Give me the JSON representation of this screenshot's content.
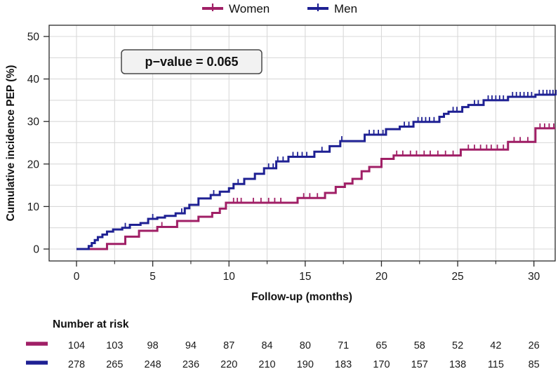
{
  "chart_data": {
    "type": "line",
    "subtype": "step-cumulative-incidence",
    "title": "",
    "xlabel": "Follow-up (months)",
    "ylabel": "Cumulative incidence PEP (%)",
    "xlim": [
      0,
      31.4
    ],
    "ylim": [
      0,
      50
    ],
    "xticks": [
      0,
      5,
      10,
      15,
      20,
      25,
      30
    ],
    "xticks_minor": [
      2.5,
      7.5,
      12.5,
      17.5,
      22.5,
      27.5
    ],
    "yticks": [
      0,
      10,
      20,
      30,
      40,
      50
    ],
    "grid": {
      "x_interval": 2.5,
      "y_interval": 5,
      "color": "#D9D9D9",
      "on": true
    },
    "legend_position": "top",
    "p_value": "p−value = 0.065",
    "series": [
      {
        "name": "Women",
        "color": "#A01F66",
        "steps": [
          [
            0,
            0
          ],
          [
            2.0,
            1.2
          ],
          [
            3.2,
            2.9
          ],
          [
            4.1,
            4.3
          ],
          [
            5.3,
            5.2
          ],
          [
            6.6,
            6.6
          ],
          [
            8.0,
            7.6
          ],
          [
            8.9,
            8.5
          ],
          [
            9.4,
            9.5
          ],
          [
            9.8,
            10.9
          ],
          [
            14.5,
            12.0
          ],
          [
            16.3,
            13.2
          ],
          [
            17.0,
            14.6
          ],
          [
            17.6,
            15.4
          ],
          [
            18.1,
            16.5
          ],
          [
            18.7,
            18.3
          ],
          [
            19.2,
            19.3
          ],
          [
            20.0,
            21.2
          ],
          [
            20.8,
            22.0
          ],
          [
            25.2,
            23.4
          ],
          [
            28.3,
            25.2
          ],
          [
            30.1,
            28.4
          ]
        ],
        "censor_ticks": [
          5.6,
          10.3,
          10.55,
          10.8,
          11.6,
          12.1,
          12.6,
          13.0,
          13.4,
          14.9,
          15.3,
          15.8,
          21.0,
          21.4,
          21.9,
          22.3,
          22.8,
          23.2,
          23.7,
          24.2,
          24.7,
          25.7,
          26.1,
          26.5,
          26.9,
          27.2,
          27.6,
          28.0,
          28.7,
          29.1,
          29.6,
          30.4,
          30.7,
          31.0,
          31.3
        ]
      },
      {
        "name": "Men",
        "color": "#1E2093",
        "steps": [
          [
            0,
            0
          ],
          [
            0.8,
            0.7
          ],
          [
            1.0,
            1.4
          ],
          [
            1.2,
            2.1
          ],
          [
            1.4,
            2.8
          ],
          [
            1.7,
            3.4
          ],
          [
            2.0,
            4.1
          ],
          [
            2.4,
            4.6
          ],
          [
            3.0,
            5.0
          ],
          [
            3.5,
            5.7
          ],
          [
            4.2,
            6.1
          ],
          [
            4.7,
            7.1
          ],
          [
            5.3,
            7.4
          ],
          [
            5.8,
            7.8
          ],
          [
            6.5,
            8.4
          ],
          [
            7.1,
            9.6
          ],
          [
            7.4,
            10.4
          ],
          [
            8.0,
            11.9
          ],
          [
            8.8,
            12.7
          ],
          [
            9.4,
            13.5
          ],
          [
            10.0,
            14.3
          ],
          [
            10.3,
            15.3
          ],
          [
            11.0,
            16.5
          ],
          [
            11.7,
            17.7
          ],
          [
            12.3,
            19.0
          ],
          [
            13.1,
            20.6
          ],
          [
            13.9,
            21.7
          ],
          [
            15.6,
            22.9
          ],
          [
            16.6,
            24.2
          ],
          [
            17.3,
            25.4
          ],
          [
            18.9,
            26.9
          ],
          [
            20.3,
            28.2
          ],
          [
            21.2,
            28.8
          ],
          [
            22.1,
            29.9
          ],
          [
            23.8,
            31.1
          ],
          [
            24.1,
            31.8
          ],
          [
            24.4,
            32.3
          ],
          [
            25.3,
            33.4
          ],
          [
            25.7,
            33.9
          ],
          [
            26.7,
            35.0
          ],
          [
            28.3,
            35.8
          ],
          [
            30.1,
            36.3
          ]
        ],
        "censor_ticks": [
          3.2,
          5.0,
          6.9,
          9.0,
          10.6,
          12.6,
          12.9,
          13.2,
          13.55,
          14.2,
          14.5,
          14.8,
          15.1,
          16.1,
          17.4,
          19.2,
          19.5,
          19.8,
          20.1,
          21.5,
          21.8,
          22.4,
          22.65,
          22.9,
          23.15,
          23.45,
          24.7,
          24.95,
          26.1,
          26.35,
          27.0,
          27.25,
          27.5,
          27.75,
          28.0,
          28.6,
          28.85,
          29.1,
          29.35,
          29.6,
          29.85,
          30.35,
          30.6,
          30.85,
          31.05,
          31.25,
          31.45
        ]
      }
    ],
    "number_at_risk": {
      "title": "Number at risk",
      "times": [
        0,
        2.5,
        5,
        7.5,
        10,
        12.5,
        15,
        17.5,
        20,
        22.5,
        25,
        27.5,
        30
      ],
      "rows": [
        {
          "name": "Women",
          "color": "#A01F66",
          "values": [
            104,
            103,
            98,
            94,
            87,
            84,
            80,
            71,
            65,
            58,
            52,
            42,
            26
          ]
        },
        {
          "name": "Men",
          "color": "#1E2093",
          "values": [
            278,
            265,
            248,
            236,
            220,
            210,
            190,
            183,
            170,
            157,
            138,
            115,
            85
          ]
        }
      ]
    }
  }
}
